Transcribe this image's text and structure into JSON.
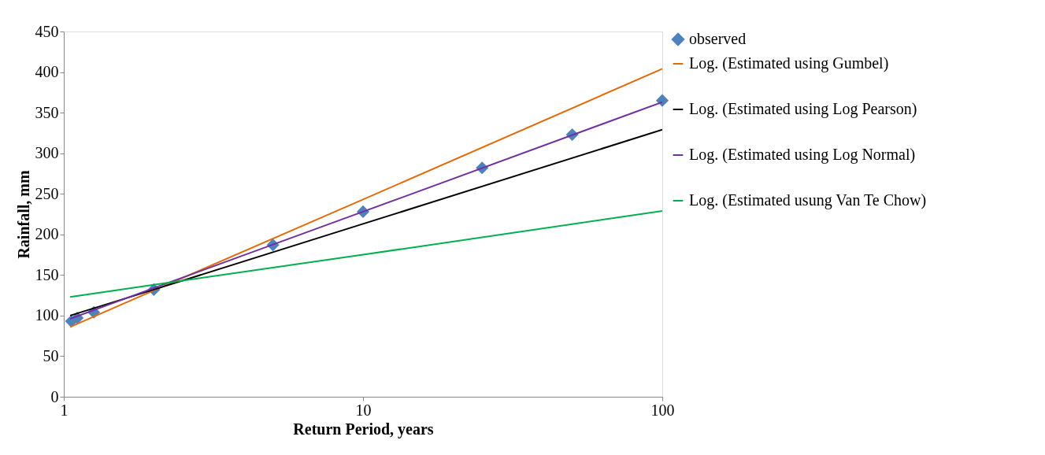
{
  "chart_data": {
    "type": "line",
    "xlabel": "Return Period, years",
    "ylabel": "Rainfall, mm",
    "log": "x",
    "xlim": [
      1,
      100
    ],
    "xticks": [
      1,
      10,
      100
    ],
    "ylim": [
      0,
      450
    ],
    "yticks": [
      0,
      50,
      100,
      150,
      200,
      250,
      300,
      350,
      400,
      450
    ],
    "grid": false,
    "legend": "right",
    "series": [
      {
        "name": "observed",
        "type": "scatter",
        "marker": "diamond",
        "color": "#4f81bd",
        "x": [
          1.06,
          1.11,
          1.26,
          2,
          5,
          10,
          25,
          50,
          100
        ],
        "values": [
          93,
          97,
          104,
          132,
          187,
          228,
          282,
          323,
          365
        ]
      },
      {
        "name": "Log. (Estimated using Gumbel)",
        "line_style": "solid",
        "color": "#e36c09",
        "x": [
          1.05,
          2,
          10,
          100
        ],
        "values": [
          86,
          131,
          243,
          404
        ]
      },
      {
        "name": "Log. (Estimated using Log Pearson)",
        "line_style": "solid",
        "color": "#000000",
        "x": [
          1.05,
          2,
          10,
          100
        ],
        "values": [
          100,
          132,
          213,
          329
        ]
      },
      {
        "name": "Log. (Estimated using Log Normal)",
        "line_style": "solid",
        "color": "#7030a0",
        "x": [
          1.05,
          2,
          10,
          100
        ],
        "values": [
          96,
          134,
          228,
          363
        ]
      },
      {
        "name": "Log. (Estimated usung Van Te Chow)",
        "line_style": "solid",
        "color": "#00b050",
        "x": [
          1.05,
          2,
          10,
          100
        ],
        "values": [
          123,
          138,
          175,
          229
        ]
      }
    ]
  }
}
